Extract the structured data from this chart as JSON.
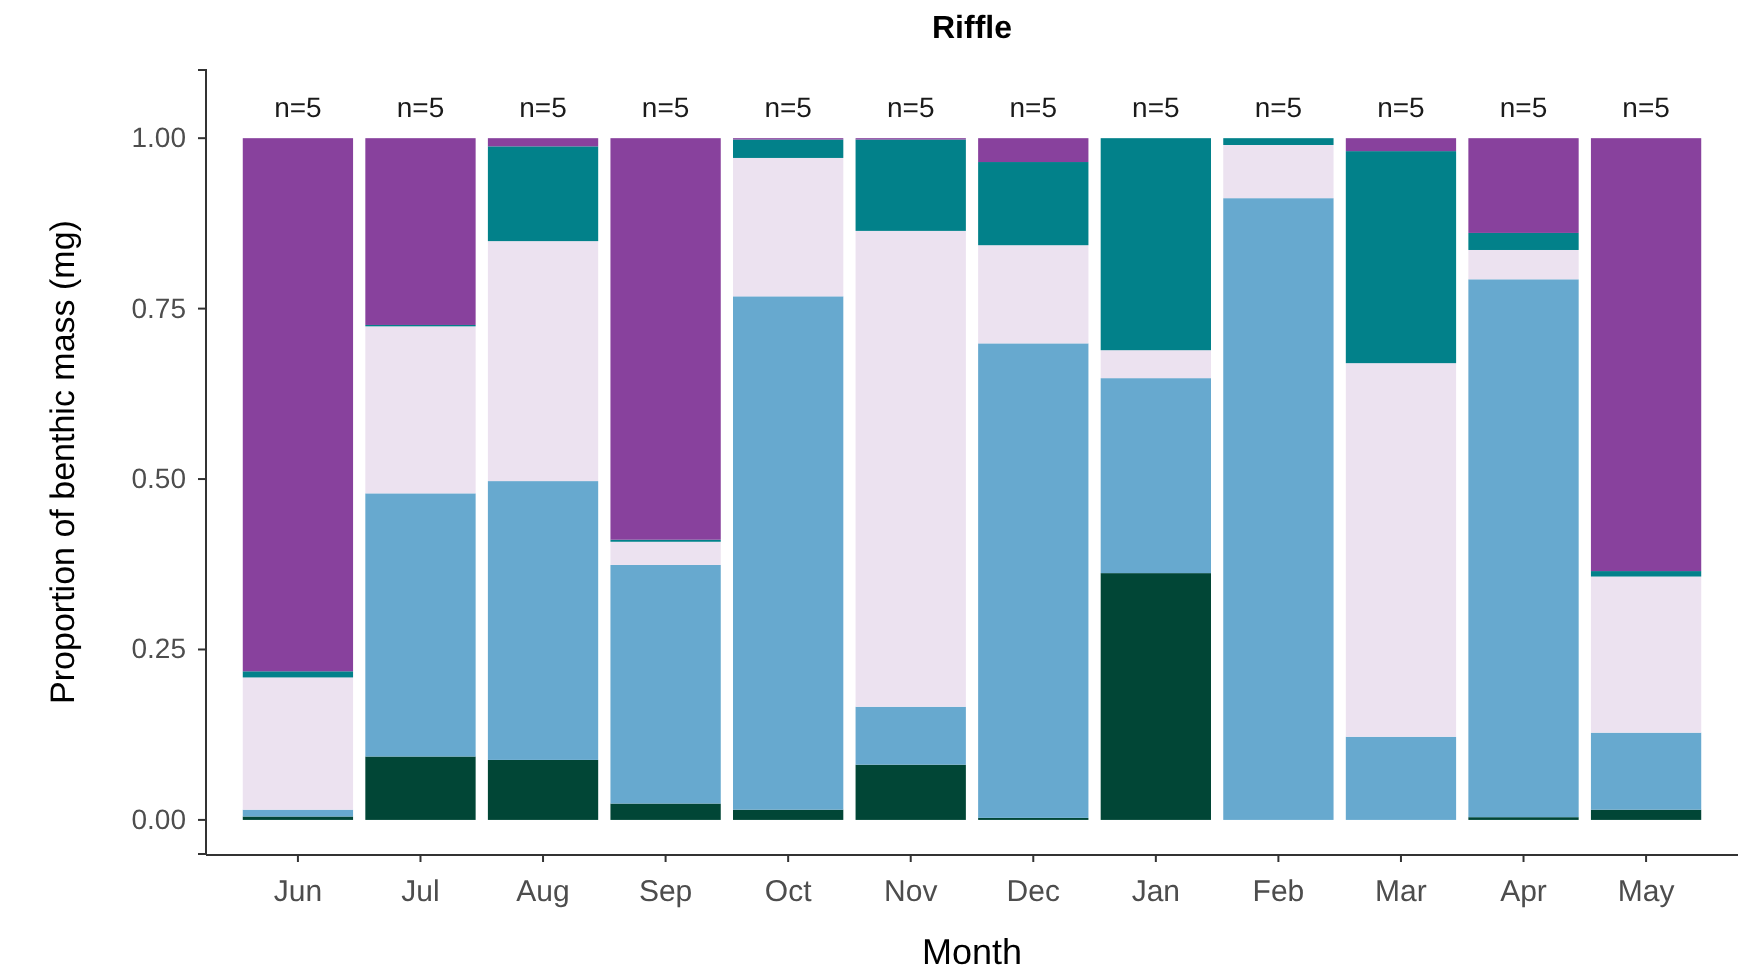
{
  "chart_data": {
    "type": "bar",
    "title": "Riffle",
    "xlabel": "Month",
    "ylabel": "Proportion of benthic mass (mg)",
    "categories": [
      "Jun",
      "Jul",
      "Aug",
      "Sep",
      "Oct",
      "Nov",
      "Dec",
      "Jan",
      "Feb",
      "Mar",
      "Apr",
      "May"
    ],
    "stacked": true,
    "legend": false,
    "grid": false,
    "ylim": [
      -0.05,
      1.1
    ],
    "yticks": [
      {
        "value": 0,
        "label": "0.00"
      },
      {
        "value": 0.25,
        "label": "0.25"
      },
      {
        "value": 0.5,
        "label": "0.50"
      },
      {
        "value": 0.75,
        "label": "0.75"
      },
      {
        "value": 1,
        "label": "1.00"
      }
    ],
    "series": [
      {
        "color": "#014636",
        "values": [
          0.005,
          0.093,
          0.088,
          0.024,
          0.015,
          0.081,
          0.003,
          0.362,
          null,
          null,
          0.004,
          0.015
        ]
      },
      {
        "color": "#67a9cf",
        "values": [
          0.01,
          0.386,
          0.409,
          0.35,
          0.753,
          0.085,
          0.696,
          0.286,
          0.912,
          0.122,
          0.789,
          0.113
        ]
      },
      {
        "color": "#ece2f0",
        "values": [
          0.194,
          0.245,
          0.352,
          0.034,
          0.203,
          0.698,
          0.144,
          0.041,
          0.078,
          0.548,
          0.043,
          0.229
        ]
      },
      {
        "color": "#02818a",
        "values": [
          0.009,
          0.002,
          0.139,
          0.003,
          0.027,
          0.134,
          0.122,
          0.311,
          0.01,
          0.311,
          0.025,
          0.008
        ]
      },
      {
        "color": "#88419d",
        "values": [
          0.782,
          0.274,
          0.012,
          0.589,
          0.002,
          0.002,
          0.035,
          null,
          null,
          0.019,
          0.139,
          0.635
        ]
      }
    ],
    "annotations": [
      "n=5",
      "n=5",
      "n=5",
      "n=5",
      "n=5",
      "n=5",
      "n=5",
      "n=5",
      "n=5",
      "n=5",
      "n=5",
      "n=5"
    ]
  }
}
